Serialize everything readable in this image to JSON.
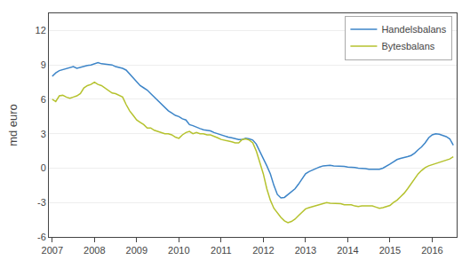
{
  "chart_data": {
    "type": "line",
    "ylabel": "md euro",
    "x": [
      2007.0,
      2007.083,
      2007.167,
      2007.25,
      2007.333,
      2007.417,
      2007.5,
      2007.583,
      2007.667,
      2007.75,
      2007.833,
      2007.917,
      2008.0,
      2008.083,
      2008.167,
      2008.25,
      2008.333,
      2008.417,
      2008.5,
      2008.583,
      2008.667,
      2008.75,
      2008.833,
      2008.917,
      2009.0,
      2009.083,
      2009.167,
      2009.25,
      2009.333,
      2009.417,
      2009.5,
      2009.583,
      2009.667,
      2009.75,
      2009.833,
      2009.917,
      2010.0,
      2010.083,
      2010.167,
      2010.25,
      2010.333,
      2010.417,
      2010.5,
      2010.583,
      2010.667,
      2010.75,
      2010.833,
      2010.917,
      2011.0,
      2011.083,
      2011.167,
      2011.25,
      2011.333,
      2011.417,
      2011.5,
      2011.583,
      2011.667,
      2011.75,
      2011.833,
      2011.917,
      2012.0,
      2012.083,
      2012.167,
      2012.25,
      2012.333,
      2012.417,
      2012.5,
      2012.583,
      2012.667,
      2012.75,
      2012.833,
      2012.917,
      2013.0,
      2013.083,
      2013.167,
      2013.25,
      2013.333,
      2013.417,
      2013.5,
      2013.583,
      2013.667,
      2013.75,
      2013.833,
      2013.917,
      2014.0,
      2014.083,
      2014.167,
      2014.25,
      2014.333,
      2014.417,
      2014.5,
      2014.583,
      2014.667,
      2014.75,
      2014.833,
      2014.917,
      2015.0,
      2015.083,
      2015.167,
      2015.25,
      2015.333,
      2015.417,
      2015.5,
      2015.583,
      2015.667,
      2015.75,
      2015.833,
      2015.917,
      2016.0,
      2016.083,
      2016.167,
      2016.25,
      2016.333,
      2016.417,
      2016.5
    ],
    "series": [
      {
        "name": "Handelsbalans",
        "color": "#3d85c8",
        "values": [
          8.0,
          8.3,
          8.5,
          8.6,
          8.7,
          8.8,
          8.85,
          8.7,
          8.8,
          8.9,
          8.95,
          9.0,
          9.1,
          9.2,
          9.1,
          9.05,
          9.0,
          9.0,
          8.85,
          8.8,
          8.7,
          8.55,
          8.2,
          7.9,
          7.5,
          7.2,
          7.0,
          6.8,
          6.5,
          6.2,
          5.9,
          5.6,
          5.3,
          5.0,
          4.8,
          4.6,
          4.5,
          4.3,
          4.2,
          3.8,
          3.7,
          3.55,
          3.45,
          3.35,
          3.3,
          3.25,
          3.1,
          3.0,
          2.85,
          2.75,
          2.7,
          2.65,
          2.55,
          2.5,
          2.5,
          2.6,
          2.55,
          2.45,
          2.1,
          1.5,
          0.8,
          0.2,
          -0.5,
          -1.5,
          -2.3,
          -2.6,
          -2.55,
          -2.3,
          -2.1,
          -1.8,
          -1.4,
          -0.9,
          -0.5,
          -0.3,
          -0.15,
          0.0,
          0.1,
          0.2,
          0.25,
          0.25,
          0.2,
          0.2,
          0.2,
          0.15,
          0.1,
          0.1,
          0.05,
          0.0,
          0.0,
          -0.05,
          -0.1,
          -0.1,
          -0.1,
          -0.1,
          0.0,
          0.15,
          0.35,
          0.55,
          0.75,
          0.85,
          0.9,
          1.0,
          1.1,
          1.3,
          1.6,
          1.85,
          2.2,
          2.65,
          2.9,
          3.0,
          2.95,
          2.85,
          2.75,
          2.55,
          2.0
        ]
      },
      {
        "name": "Bytesbalans",
        "color": "#b5c22e",
        "values": [
          6.0,
          5.8,
          6.3,
          6.35,
          6.2,
          6.1,
          6.2,
          6.3,
          6.5,
          7.0,
          7.2,
          7.3,
          7.5,
          7.3,
          7.2,
          7.0,
          6.8,
          6.55,
          6.5,
          6.35,
          6.2,
          5.55,
          5.0,
          4.6,
          4.2,
          4.0,
          3.8,
          3.5,
          3.5,
          3.3,
          3.2,
          3.1,
          3.0,
          3.0,
          2.9,
          2.7,
          2.6,
          2.9,
          3.1,
          3.2,
          3.0,
          3.1,
          3.0,
          3.0,
          2.9,
          2.9,
          2.8,
          2.65,
          2.5,
          2.45,
          2.4,
          2.3,
          2.2,
          2.2,
          2.5,
          2.55,
          2.45,
          2.2,
          1.5,
          0.5,
          -0.5,
          -1.8,
          -2.8,
          -3.5,
          -3.9,
          -4.3,
          -4.6,
          -4.75,
          -4.65,
          -4.45,
          -4.15,
          -3.85,
          -3.55,
          -3.45,
          -3.35,
          -3.25,
          -3.15,
          -3.05,
          -3.0,
          -3.05,
          -3.05,
          -3.1,
          -3.1,
          -3.2,
          -3.2,
          -3.2,
          -3.3,
          -3.35,
          -3.3,
          -3.3,
          -3.35,
          -3.3,
          -3.4,
          -3.5,
          -3.45,
          -3.35,
          -3.25,
          -3.0,
          -2.8,
          -2.5,
          -2.2,
          -1.8,
          -1.4,
          -1.0,
          -0.5,
          -0.2,
          0.05,
          0.2,
          0.3,
          0.4,
          0.5,
          0.6,
          0.7,
          0.8,
          1.0
        ]
      }
    ],
    "xlim": [
      2006.92,
      2016.58
    ],
    "xticks": [
      2007,
      2008,
      2009,
      2010,
      2011,
      2012,
      2013,
      2014,
      2015,
      2016
    ],
    "ylim": [
      -6,
      13.5
    ],
    "yticks": [
      -6,
      -3,
      0,
      3,
      6,
      9,
      12
    ],
    "grid": true,
    "legend": "upper right"
  }
}
